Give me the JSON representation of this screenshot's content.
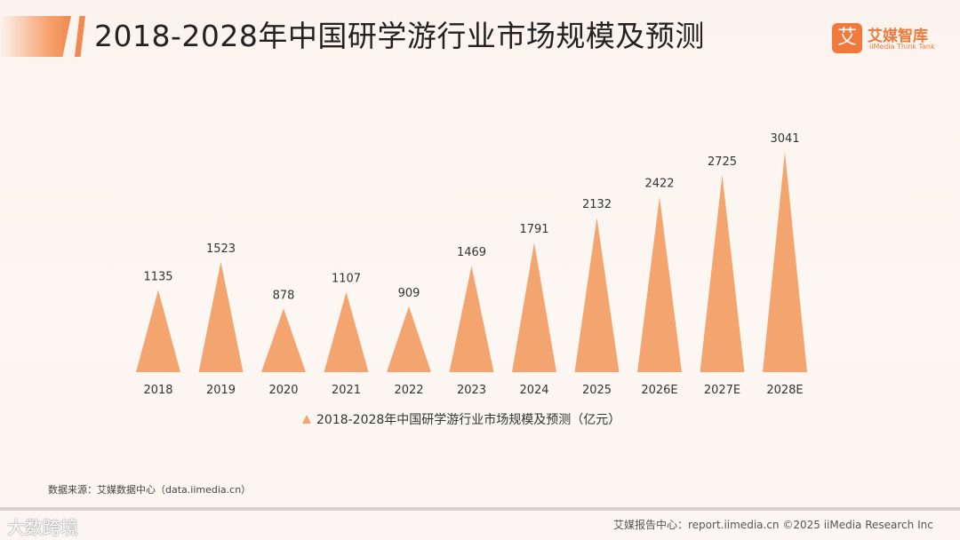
{
  "header": {
    "title": "2018-2028年中国研学游行业市场规模及预测"
  },
  "logo": {
    "mark": "艾",
    "name": "艾媒智库",
    "sub": "iiMedia Think Tank"
  },
  "chart_data": {
    "type": "bar",
    "bar_shape": "triangle",
    "categories": [
      "2018",
      "2019",
      "2020",
      "2021",
      "2022",
      "2023",
      "2024",
      "2025",
      "2026E",
      "2027E",
      "2028E"
    ],
    "series": [
      {
        "name": "2018-2028年中国研学游行业市场规模及预测（亿元）",
        "values": [
          1135,
          1523,
          878,
          1107,
          909,
          1469,
          1791,
          2132,
          2422,
          2725,
          3041
        ]
      }
    ],
    "data_labels": [
      "1135",
      "1523",
      "878",
      "1107",
      "909",
      "1469",
      "1791",
      "2132",
      "2422",
      "2725",
      "3041"
    ],
    "ylim": [
      0,
      3300
    ],
    "legend_position": "bottom",
    "grid": false,
    "color": "#f4a56f"
  },
  "legend": {
    "label": "2018-2028年中国研学游行业市场规模及预测（亿元）"
  },
  "source": {
    "text": "数据来源：艾媒数据中心（data.iimedia.cn）"
  },
  "footer": {
    "watermark": "大数跨境",
    "text": "艾媒报告中心：report.iimedia.cn  ©2025 iiMedia Research Inc"
  }
}
